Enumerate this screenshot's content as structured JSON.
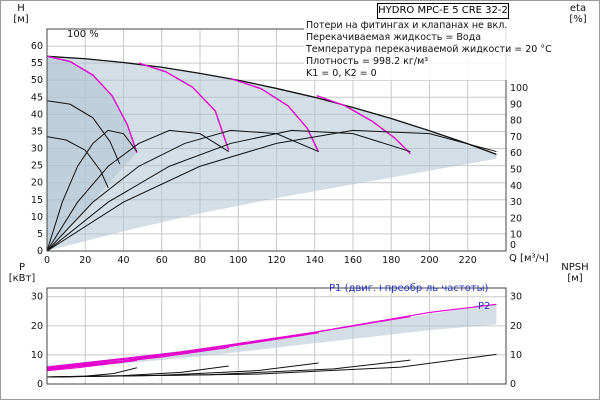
{
  "window": {
    "title": "HYDRO MPC-E 5 CRE 32-2"
  },
  "info_lines": [
    "Потери на фитингах и клапанах не вкл.",
    "Перекачиваемая жидкость = Вода",
    "Температура перекачиваемой жидкости = 20 °C",
    "Плотность = 998.2 кг/м³",
    "K1 = 0, K2 = 0"
  ],
  "labels": {
    "h_axis": "H",
    "h_unit": "[м]",
    "eta_axis": "eta",
    "eta_unit": "[%]",
    "q_axis": "Q [м³/ч]",
    "p_axis": "P",
    "p_unit": "[кВт]",
    "npsh_axis": "NPSH",
    "npsh_unit": "[м]",
    "speed_100": "100 %",
    "p1_curve": "P1 (двиг.+преобр-ль частоты)",
    "p2_curve": "P2"
  },
  "colors": {
    "black": "#111111",
    "magenta": "#e500ce",
    "envelope": "#afc2d1",
    "grid": "#c9c9c9",
    "axis": "#444444",
    "blue": "#2233bb",
    "background": "#ffffff"
  },
  "chart_data": [
    {
      "type": "line",
      "title": "Pump performance curves (QH and efficiency)",
      "xlabel": "Q [м³/ч]",
      "ylabel_left": "H [м]",
      "ylabel_right": "eta [%]",
      "xlim": [
        0,
        240
      ],
      "ylim_left": [
        0,
        65
      ],
      "ylim_right": [
        0,
        100
      ],
      "grid": true,
      "x_ticks": [
        0,
        20,
        40,
        60,
        80,
        100,
        120,
        140,
        160,
        180,
        200,
        220
      ],
      "h_ticks": [
        0,
        5,
        10,
        15,
        20,
        25,
        30,
        35,
        40,
        45,
        50,
        55,
        60
      ],
      "eta_ticks": [
        0,
        10,
        20,
        30,
        40,
        50,
        60,
        70,
        80,
        90,
        100
      ],
      "envelopes": [
        {
          "name": "operating-range-all-pumps",
          "points": [
            [
              0,
              57
            ],
            [
              20,
              56.3
            ],
            [
              40,
              55.2
            ],
            [
              60,
              53.8
            ],
            [
              80,
              52
            ],
            [
              100,
              50
            ],
            [
              120,
              47.6
            ],
            [
              140,
              45
            ],
            [
              160,
              42
            ],
            [
              180,
              38.8
            ],
            [
              200,
              35.2
            ],
            [
              220,
              31.4
            ],
            [
              235,
              28.3
            ],
            [
              235,
              27
            ],
            [
              200,
              23.5
            ],
            [
              160,
              19.5
            ],
            [
              120,
              15.5
            ],
            [
              80,
              11
            ],
            [
              40,
              5.8
            ],
            [
              0,
              0
            ]
          ]
        },
        {
          "name": "operating-range-one-pump",
          "points": [
            [
              0,
              57
            ],
            [
              12,
              55.5
            ],
            [
              24,
              51.5
            ],
            [
              34,
              45.5
            ],
            [
              42,
              37
            ],
            [
              47,
              28.8
            ],
            [
              35,
              21.5
            ],
            [
              20,
              12
            ],
            [
              10,
              6
            ],
            [
              0,
              0
            ]
          ]
        }
      ],
      "series": [
        {
          "name": "max-speed-envelope-curve",
          "color": "black",
          "axis": "H",
          "width": 1.3,
          "points": [
            [
              0,
              57
            ],
            [
              20,
              56.3
            ],
            [
              40,
              55.2
            ],
            [
              60,
              53.8
            ],
            [
              80,
              52
            ],
            [
              100,
              50
            ],
            [
              120,
              47.6
            ],
            [
              140,
              45
            ],
            [
              160,
              42
            ],
            [
              180,
              38.8
            ],
            [
              200,
              35.2
            ],
            [
              220,
              31.4
            ],
            [
              235,
              28.3
            ]
          ]
        },
        {
          "name": "pump1-100pct-curve",
          "color": "magenta",
          "axis": "H",
          "width": 1.4,
          "points": [
            [
              0,
              57
            ],
            [
              12,
              55.5
            ],
            [
              24,
              51.5
            ],
            [
              34,
              45.5
            ],
            [
              42,
              37
            ],
            [
              47,
              28.8
            ]
          ]
        },
        {
          "name": "pump2-100pct-curve",
          "color": "magenta",
          "axis": "H",
          "width": 1.4,
          "points": [
            [
              48,
              55
            ],
            [
              62,
              52.5
            ],
            [
              76,
              48
            ],
            [
              88,
              41
            ],
            [
              95,
              29.5
            ]
          ]
        },
        {
          "name": "pump3-100pct-curve",
          "color": "magenta",
          "axis": "H",
          "width": 1.4,
          "points": [
            [
              96,
              50.5
            ],
            [
              112,
              47.5
            ],
            [
              126,
              42.5
            ],
            [
              136,
              36
            ],
            [
              142,
              29
            ]
          ]
        },
        {
          "name": "pump4-100pct-curve",
          "color": "magenta",
          "axis": "H",
          "width": 1.4,
          "points": [
            [
              141,
              45.5
            ],
            [
              156,
              42.5
            ],
            [
              170,
              38
            ],
            [
              182,
              33
            ],
            [
              190,
              28.5
            ]
          ]
        },
        {
          "name": "efficiency-1-pump",
          "color": "black",
          "axis": "eta",
          "width": 1,
          "points": [
            [
              0,
              0
            ],
            [
              8,
              30
            ],
            [
              16,
              52
            ],
            [
              24,
              66
            ],
            [
              32,
              74
            ],
            [
              40,
              72
            ],
            [
              47,
              61
            ]
          ]
        },
        {
          "name": "efficiency-2-pumps",
          "color": "black",
          "axis": "eta",
          "width": 1,
          "points": [
            [
              0,
              0
            ],
            [
              16,
              30
            ],
            [
              32,
              52
            ],
            [
              48,
              66
            ],
            [
              64,
              74
            ],
            [
              80,
              72
            ],
            [
              95,
              61
            ]
          ]
        },
        {
          "name": "efficiency-3-pumps",
          "color": "black",
          "axis": "eta",
          "width": 1,
          "points": [
            [
              0,
              0
            ],
            [
              24,
              30
            ],
            [
              48,
              52
            ],
            [
              72,
              66
            ],
            [
              96,
              74
            ],
            [
              120,
              72
            ],
            [
              142,
              61
            ]
          ]
        },
        {
          "name": "efficiency-4-pumps",
          "color": "black",
          "axis": "eta",
          "width": 1,
          "points": [
            [
              0,
              0
            ],
            [
              32,
              30
            ],
            [
              64,
              52
            ],
            [
              96,
              66
            ],
            [
              128,
              74
            ],
            [
              160,
              72
            ],
            [
              190,
              61
            ]
          ]
        },
        {
          "name": "efficiency-5-pumps",
          "color": "black",
          "axis": "eta",
          "width": 1,
          "points": [
            [
              0,
              0
            ],
            [
              40,
              30
            ],
            [
              80,
              52
            ],
            [
              120,
              66
            ],
            [
              160,
              74
            ],
            [
              200,
              72
            ],
            [
              235,
              61
            ]
          ]
        },
        {
          "name": "reduced-speed-curve-a",
          "color": "black",
          "axis": "H",
          "width": 1,
          "points": [
            [
              0,
              44
            ],
            [
              12,
              43
            ],
            [
              24,
              39
            ],
            [
              33,
              32
            ],
            [
              38,
              25.5
            ]
          ]
        },
        {
          "name": "reduced-speed-curve-b",
          "color": "black",
          "axis": "H",
          "width": 1,
          "points": [
            [
              0,
              33.5
            ],
            [
              10,
              32.5
            ],
            [
              20,
              29.5
            ],
            [
              28,
              23.5
            ],
            [
              32,
              18.5
            ]
          ]
        }
      ]
    },
    {
      "type": "line",
      "title": "Power (P1) and NPSH curves",
      "ylabel_left": "P [кВт]",
      "ylabel_right": "NPSH [м]",
      "xlim": [
        0,
        240
      ],
      "ylim": [
        0,
        33
      ],
      "grid": true,
      "x_ticks": [
        0,
        20,
        40,
        60,
        80,
        100,
        120,
        140,
        160,
        180,
        200,
        220
      ],
      "p_ticks": [
        0,
        10,
        20,
        30
      ],
      "npsh_ticks": [
        0,
        10,
        20,
        30
      ],
      "envelopes": [
        {
          "name": "p1-operating-range",
          "points": [
            [
              0,
              6.3
            ],
            [
              40,
              9
            ],
            [
              80,
              12.2
            ],
            [
              120,
              15.8
            ],
            [
              160,
              19.8
            ],
            [
              200,
              24
            ],
            [
              235,
              27.5
            ],
            [
              235,
              20.5
            ],
            [
              200,
              18.5
            ],
            [
              160,
              15.5
            ],
            [
              120,
              12.5
            ],
            [
              80,
              9.5
            ],
            [
              40,
              7
            ],
            [
              0,
              5.2
            ]
          ]
        }
      ],
      "series": [
        {
          "name": "p1-1-pump",
          "color": "magenta",
          "width": 1.2,
          "points": [
            [
              0,
              4.6
            ],
            [
              16,
              5.6
            ],
            [
              32,
              6.9
            ],
            [
              47,
              8.1
            ]
          ]
        },
        {
          "name": "p1-2-pumps",
          "color": "magenta",
          "width": 1.2,
          "points": [
            [
              0,
              4.9
            ],
            [
              24,
              6.6
            ],
            [
              60,
              9.3
            ],
            [
              95,
              12.6
            ]
          ]
        },
        {
          "name": "p1-3-pumps",
          "color": "magenta",
          "width": 1.2,
          "points": [
            [
              0,
              5.2
            ],
            [
              40,
              8
            ],
            [
              90,
              12.4
            ],
            [
              142,
              17.6
            ]
          ]
        },
        {
          "name": "p1-4-pumps",
          "color": "magenta",
          "width": 1.2,
          "points": [
            [
              0,
              5.5
            ],
            [
              55,
              9.6
            ],
            [
              120,
              15.6
            ],
            [
              190,
              23.2
            ]
          ]
        },
        {
          "name": "p1-5-pumps",
          "color": "magenta",
          "width": 1.2,
          "points": [
            [
              0,
              5.8
            ],
            [
              70,
              11
            ],
            [
              140,
              17.8
            ],
            [
              200,
              24.6
            ],
            [
              235,
              27.4
            ]
          ]
        },
        {
          "name": "npsh-1-pump",
          "color": "black",
          "width": 1,
          "points": [
            [
              0,
              2.4
            ],
            [
              20,
              2.7
            ],
            [
              35,
              3.6
            ],
            [
              47,
              5.6
            ]
          ]
        },
        {
          "name": "npsh-2-pumps",
          "color": "black",
          "width": 1,
          "points": [
            [
              0,
              2.4
            ],
            [
              40,
              2.9
            ],
            [
              70,
              4
            ],
            [
              95,
              6.2
            ]
          ]
        },
        {
          "name": "npsh-3-pumps",
          "color": "black",
          "width": 1,
          "points": [
            [
              0,
              2.4
            ],
            [
              60,
              3
            ],
            [
              110,
              4.6
            ],
            [
              142,
              7.2
            ]
          ]
        },
        {
          "name": "npsh-4-pumps",
          "color": "black",
          "width": 1,
          "points": [
            [
              0,
              2.4
            ],
            [
              85,
              3.2
            ],
            [
              150,
              5.2
            ],
            [
              190,
              8.2
            ]
          ]
        },
        {
          "name": "npsh-5-pumps",
          "color": "black",
          "width": 1,
          "points": [
            [
              0,
              2.4
            ],
            [
              110,
              3.4
            ],
            [
              185,
              5.8
            ],
            [
              235,
              10.2
            ]
          ]
        }
      ]
    }
  ]
}
